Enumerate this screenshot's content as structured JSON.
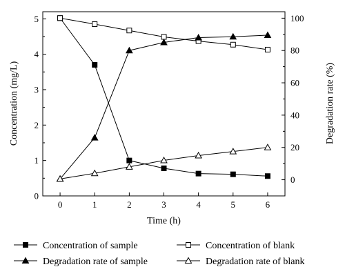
{
  "chart_data": {
    "type": "line",
    "xlabel": "Time (h)",
    "ylabel_left": "Concentration (mg/L)",
    "ylabel_right": "Degradation rate (%)",
    "x": [
      0,
      1,
      2,
      3,
      4,
      5,
      6
    ],
    "xlim": [
      -0.5,
      6.5
    ],
    "ylim_left": [
      0,
      5.2
    ],
    "ylim_right": [
      -10,
      104
    ],
    "x_ticks": [
      "0",
      "1",
      "2",
      "3",
      "4",
      "5",
      "6"
    ],
    "y_left_ticks": [
      "0",
      "1",
      "2",
      "3",
      "4",
      "5"
    ],
    "y_right_ticks": [
      "0",
      "20",
      "40",
      "60",
      "80",
      "100"
    ],
    "grid": false,
    "legend_position": "bottom",
    "series": [
      {
        "name": "Concentration of sample",
        "axis": "left",
        "marker": "filled-square",
        "values": [
          5.02,
          3.7,
          1.0,
          0.78,
          0.63,
          0.61,
          0.56
        ]
      },
      {
        "name": "Concentration of blank",
        "axis": "left",
        "marker": "open-square",
        "values": [
          5.02,
          4.85,
          4.67,
          4.49,
          4.37,
          4.27,
          4.13
        ]
      },
      {
        "name": "Degradation rate of sample",
        "axis": "right",
        "marker": "filled-triangle",
        "values": [
          0.5,
          26,
          80,
          85,
          88,
          88.5,
          89.5
        ]
      },
      {
        "name": "Degradation rate of blank",
        "axis": "right",
        "marker": "open-triangle",
        "values": [
          0.5,
          4,
          8,
          12,
          15,
          17.5,
          20
        ]
      }
    ]
  }
}
